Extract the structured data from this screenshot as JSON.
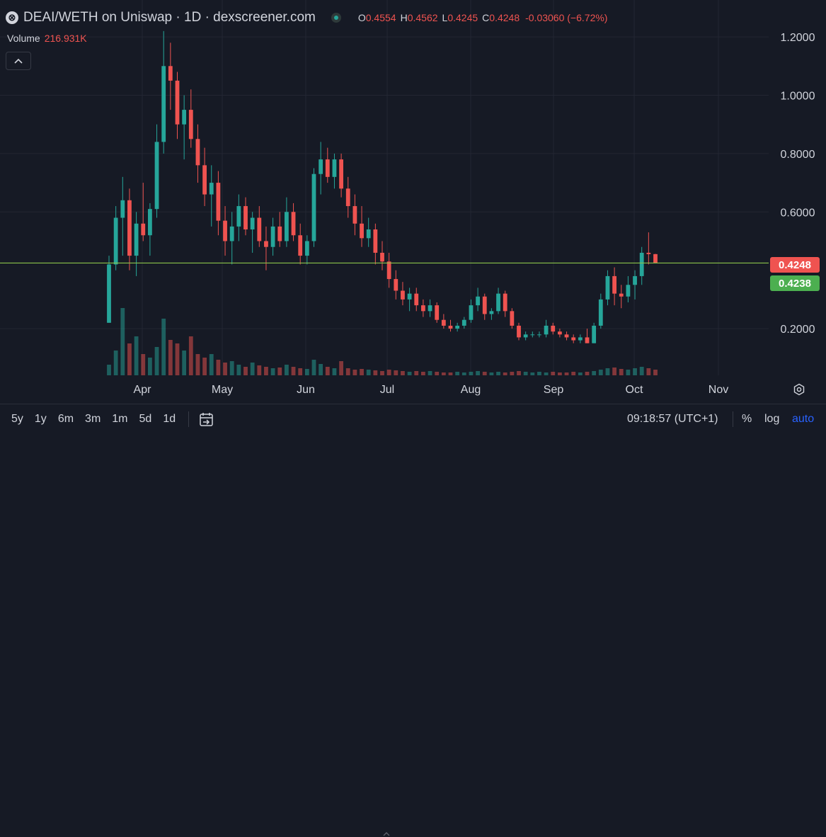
{
  "header": {
    "logo_glyph": "⊗",
    "title": "DEAI/WETH on Uniswap · 1D · dexscreener.com",
    "ohlc": [
      {
        "key": "O",
        "value": "0.4554"
      },
      {
        "key": "H",
        "value": "0.4562"
      },
      {
        "key": "L",
        "value": "0.4245"
      },
      {
        "key": "C",
        "value": "0.4248"
      }
    ],
    "change": "-0.03060 (−6.72%)"
  },
  "volume": {
    "label": "Volume",
    "value": "216.931K"
  },
  "price_scale": {
    "ticks": [
      "1.2000",
      "1.0000",
      "0.8000",
      "0.6000",
      "0.2000"
    ],
    "last_price_tag": "0.4248",
    "second_tag": "0.4238"
  },
  "time_scale": {
    "ticks": [
      "Apr",
      "May",
      "Jun",
      "Jul",
      "Aug",
      "Sep",
      "Oct",
      "Nov"
    ]
  },
  "bottom_bar": {
    "ranges": [
      "5y",
      "1y",
      "6m",
      "3m",
      "1m",
      "5d",
      "1d"
    ],
    "clock": "09:18:57 (UTC+1)",
    "percent": "%",
    "log": "log",
    "auto": "auto"
  },
  "colors": {
    "background": "#161a25",
    "up": "#26a69a",
    "down": "#ef5350",
    "last_price_line": "#8bc34a",
    "grid": "#232632",
    "text": "#d1d4dc"
  },
  "icons": {
    "collapse": "chevron-up-icon",
    "settings": "gear-icon",
    "goto_date": "calendar-arrow-icon"
  },
  "chart_data": {
    "type": "candlestick",
    "title": "DEAI/WETH on Uniswap · 1D · dexscreener.com",
    "y_ticks": [
      0.2,
      0.6,
      0.8,
      1.0,
      1.2
    ],
    "ylim": [
      0.04,
      1.29
    ],
    "last_price": 0.4248,
    "x_ticks": [
      "Apr",
      "May",
      "Jun",
      "Jul",
      "Aug",
      "Sep",
      "Oct",
      "Nov"
    ],
    "grid": true,
    "ohlc_points": [
      [
        0.22,
        0.45,
        0.22,
        0.42
      ],
      [
        0.42,
        0.62,
        0.4,
        0.58
      ],
      [
        0.58,
        0.72,
        0.45,
        0.64
      ],
      [
        0.64,
        0.68,
        0.4,
        0.45
      ],
      [
        0.45,
        0.6,
        0.38,
        0.56
      ],
      [
        0.56,
        0.7,
        0.5,
        0.52
      ],
      [
        0.52,
        0.63,
        0.45,
        0.61
      ],
      [
        0.61,
        0.9,
        0.58,
        0.84
      ],
      [
        0.84,
        1.22,
        0.8,
        1.1
      ],
      [
        1.1,
        1.18,
        0.95,
        1.05
      ],
      [
        1.05,
        1.08,
        0.85,
        0.9
      ],
      [
        0.9,
        1.0,
        0.78,
        0.95
      ],
      [
        0.95,
        1.02,
        0.82,
        0.85
      ],
      [
        0.85,
        0.9,
        0.7,
        0.76
      ],
      [
        0.76,
        0.82,
        0.62,
        0.66
      ],
      [
        0.66,
        0.76,
        0.55,
        0.7
      ],
      [
        0.7,
        0.74,
        0.52,
        0.57
      ],
      [
        0.57,
        0.62,
        0.45,
        0.5
      ],
      [
        0.5,
        0.6,
        0.42,
        0.55
      ],
      [
        0.55,
        0.66,
        0.5,
        0.62
      ],
      [
        0.62,
        0.65,
        0.52,
        0.54
      ],
      [
        0.54,
        0.6,
        0.46,
        0.58
      ],
      [
        0.58,
        0.62,
        0.48,
        0.5
      ],
      [
        0.5,
        0.55,
        0.4,
        0.48
      ],
      [
        0.48,
        0.58,
        0.45,
        0.55
      ],
      [
        0.55,
        0.6,
        0.48,
        0.5
      ],
      [
        0.5,
        0.65,
        0.48,
        0.6
      ],
      [
        0.6,
        0.63,
        0.5,
        0.52
      ],
      [
        0.52,
        0.56,
        0.42,
        0.45
      ],
      [
        0.45,
        0.52,
        0.42,
        0.5
      ],
      [
        0.5,
        0.75,
        0.48,
        0.73
      ],
      [
        0.73,
        0.84,
        0.66,
        0.78
      ],
      [
        0.78,
        0.82,
        0.7,
        0.72
      ],
      [
        0.72,
        0.8,
        0.68,
        0.78
      ],
      [
        0.78,
        0.8,
        0.65,
        0.68
      ],
      [
        0.68,
        0.72,
        0.58,
        0.62
      ],
      [
        0.62,
        0.66,
        0.52,
        0.56
      ],
      [
        0.56,
        0.62,
        0.48,
        0.51
      ],
      [
        0.51,
        0.58,
        0.48,
        0.54
      ],
      [
        0.54,
        0.56,
        0.42,
        0.46
      ],
      [
        0.46,
        0.5,
        0.4,
        0.43
      ],
      [
        0.43,
        0.46,
        0.34,
        0.37
      ],
      [
        0.37,
        0.4,
        0.3,
        0.33
      ],
      [
        0.33,
        0.36,
        0.28,
        0.3
      ],
      [
        0.3,
        0.34,
        0.26,
        0.32
      ],
      [
        0.32,
        0.34,
        0.26,
        0.28
      ],
      [
        0.28,
        0.3,
        0.24,
        0.26
      ],
      [
        0.26,
        0.3,
        0.24,
        0.28
      ],
      [
        0.28,
        0.29,
        0.22,
        0.23
      ],
      [
        0.23,
        0.25,
        0.2,
        0.21
      ],
      [
        0.21,
        0.23,
        0.19,
        0.2
      ],
      [
        0.2,
        0.22,
        0.19,
        0.21
      ],
      [
        0.21,
        0.24,
        0.2,
        0.23
      ],
      [
        0.23,
        0.3,
        0.22,
        0.28
      ],
      [
        0.28,
        0.34,
        0.26,
        0.31
      ],
      [
        0.31,
        0.32,
        0.23,
        0.25
      ],
      [
        0.25,
        0.27,
        0.23,
        0.26
      ],
      [
        0.26,
        0.34,
        0.25,
        0.32
      ],
      [
        0.32,
        0.33,
        0.24,
        0.26
      ],
      [
        0.26,
        0.27,
        0.2,
        0.21
      ],
      [
        0.21,
        0.22,
        0.16,
        0.17
      ],
      [
        0.17,
        0.19,
        0.16,
        0.18
      ],
      [
        0.18,
        0.19,
        0.17,
        0.18
      ],
      [
        0.18,
        0.19,
        0.17,
        0.18
      ],
      [
        0.18,
        0.23,
        0.17,
        0.21
      ],
      [
        0.21,
        0.22,
        0.18,
        0.19
      ],
      [
        0.19,
        0.2,
        0.17,
        0.18
      ],
      [
        0.18,
        0.19,
        0.16,
        0.17
      ],
      [
        0.17,
        0.18,
        0.15,
        0.16
      ],
      [
        0.16,
        0.18,
        0.15,
        0.17
      ],
      [
        0.17,
        0.2,
        0.15,
        0.15
      ],
      [
        0.15,
        0.22,
        0.15,
        0.21
      ],
      [
        0.21,
        0.32,
        0.2,
        0.3
      ],
      [
        0.3,
        0.4,
        0.28,
        0.38
      ],
      [
        0.38,
        0.41,
        0.28,
        0.32
      ],
      [
        0.32,
        0.35,
        0.27,
        0.31
      ],
      [
        0.31,
        0.38,
        0.29,
        0.35
      ],
      [
        0.35,
        0.4,
        0.3,
        0.38
      ],
      [
        0.38,
        0.48,
        0.35,
        0.46
      ],
      [
        0.46,
        0.53,
        0.42,
        0.4554
      ],
      [
        0.4554,
        0.4562,
        0.4245,
        0.4248
      ]
    ],
    "volume_profile": [
      0.15,
      0.35,
      0.95,
      0.45,
      0.55,
      0.3,
      0.25,
      0.4,
      0.8,
      0.5,
      0.45,
      0.35,
      0.55,
      0.3,
      0.25,
      0.3,
      0.22,
      0.18,
      0.2,
      0.15,
      0.12,
      0.18,
      0.14,
      0.12,
      0.1,
      0.11,
      0.15,
      0.12,
      0.1,
      0.09,
      0.22,
      0.16,
      0.12,
      0.1,
      0.2,
      0.1,
      0.08,
      0.09,
      0.08,
      0.07,
      0.06,
      0.08,
      0.07,
      0.06,
      0.05,
      0.06,
      0.05,
      0.06,
      0.05,
      0.04,
      0.04,
      0.05,
      0.04,
      0.05,
      0.06,
      0.05,
      0.04,
      0.05,
      0.04,
      0.05,
      0.06,
      0.05,
      0.04,
      0.05,
      0.04,
      0.05,
      0.04,
      0.04,
      0.05,
      0.04,
      0.05,
      0.06,
      0.08,
      0.1,
      0.11,
      0.09,
      0.08,
      0.1,
      0.12,
      0.1,
      0.08
    ]
  }
}
